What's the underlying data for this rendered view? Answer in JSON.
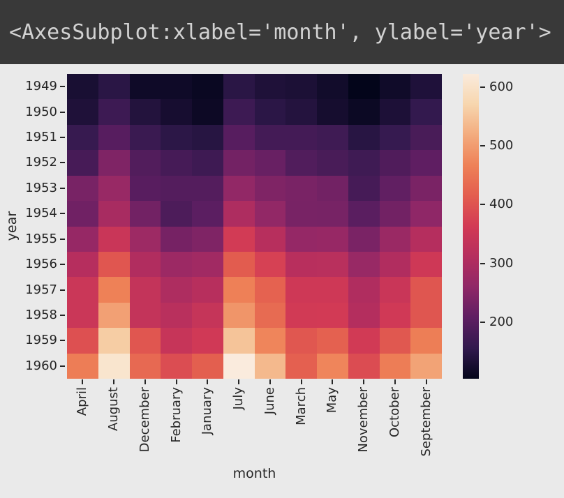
{
  "titlebar": {
    "text": "<AxesSubplot:xlabel='month', ylabel='year'>"
  },
  "colors": {
    "figure_bg": "#eaeaea",
    "titlebar_bg": "#393939",
    "titlebar_fg": "#d2d2d2",
    "tick_color": "#262626"
  },
  "chart_data": {
    "type": "heatmap",
    "title": "",
    "xlabel": "month",
    "ylabel": "year",
    "columns": [
      "April",
      "August",
      "December",
      "February",
      "January",
      "July",
      "June",
      "March",
      "May",
      "November",
      "October",
      "September"
    ],
    "rows": [
      "1949",
      "1950",
      "1951",
      "1952",
      "1953",
      "1954",
      "1955",
      "1956",
      "1957",
      "1958",
      "1959",
      "1960"
    ],
    "values": [
      [
        129,
        148,
        118,
        118,
        112,
        148,
        135,
        132,
        121,
        104,
        119,
        136
      ],
      [
        135,
        170,
        140,
        126,
        115,
        170,
        149,
        141,
        125,
        114,
        133,
        158
      ],
      [
        163,
        199,
        166,
        150,
        145,
        199,
        178,
        178,
        172,
        146,
        162,
        184
      ],
      [
        181,
        242,
        194,
        180,
        171,
        230,
        218,
        193,
        183,
        172,
        191,
        209
      ],
      [
        235,
        272,
        201,
        196,
        196,
        264,
        243,
        236,
        229,
        180,
        211,
        237
      ],
      [
        227,
        293,
        229,
        188,
        204,
        302,
        264,
        235,
        234,
        203,
        229,
        259
      ],
      [
        269,
        347,
        278,
        233,
        242,
        364,
        315,
        267,
        270,
        237,
        274,
        312
      ],
      [
        313,
        405,
        306,
        277,
        284,
        413,
        374,
        317,
        318,
        271,
        306,
        355
      ],
      [
        348,
        467,
        336,
        301,
        315,
        465,
        422,
        356,
        355,
        305,
        347,
        404
      ],
      [
        348,
        505,
        337,
        318,
        340,
        491,
        435,
        362,
        363,
        310,
        359,
        404
      ],
      [
        396,
        559,
        405,
        342,
        360,
        548,
        472,
        406,
        420,
        362,
        407,
        463
      ],
      [
        461,
        606,
        432,
        391,
        417,
        622,
        535,
        419,
        472,
        390,
        461,
        508
      ]
    ],
    "vmin": 104,
    "vmax": 622,
    "colorbar_ticks": [
      600,
      500,
      400,
      300,
      200
    ],
    "colormap": "rocket",
    "colormap_anchors": [
      {
        "f": 0.0,
        "c": "#03051a"
      },
      {
        "f": 0.1,
        "c": "#31194d"
      },
      {
        "f": 0.2,
        "c": "#5e1e62"
      },
      {
        "f": 0.3,
        "c": "#8f2767"
      },
      {
        "f": 0.4,
        "c": "#b52e5e"
      },
      {
        "f": 0.5,
        "c": "#d23a55"
      },
      {
        "f": 0.6,
        "c": "#e35d4f"
      },
      {
        "f": 0.7,
        "c": "#ee8157"
      },
      {
        "f": 0.8,
        "c": "#f3ab7e"
      },
      {
        "f": 0.9,
        "c": "#f7d6ae"
      },
      {
        "f": 1.0,
        "c": "#faebdd"
      }
    ],
    "legend_position": "right",
    "grid": false
  }
}
